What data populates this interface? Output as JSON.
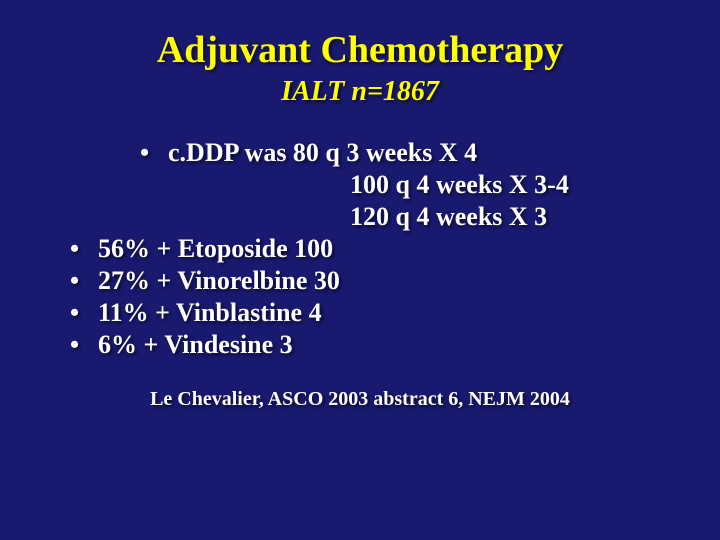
{
  "slide": {
    "title": "Adjuvant Chemotherapy",
    "subtitle": "IALT    n=1867",
    "subBullet": "c.DDP was  80 q 3 weeks X 4",
    "indentLines": [
      "100 q 4 weeks X 3-4",
      "120 q 4 weeks X 3"
    ],
    "mainBullets": [
      "56% + Etoposide 100",
      "27% + Vinorelbine 30",
      "11% + Vinblastine 4",
      "6%   + Vindesine 3"
    ],
    "citation": "Le Chevalier, ASCO 2003 abstract 6, NEJM 2004",
    "colors": {
      "background": "#191970",
      "title": "#FFFF00",
      "body": "#FFFFFF"
    },
    "fonts": {
      "family": "Times New Roman",
      "titleSize": 38,
      "subtitleSize": 28,
      "bodySize": 26,
      "citationSize": 20
    }
  }
}
